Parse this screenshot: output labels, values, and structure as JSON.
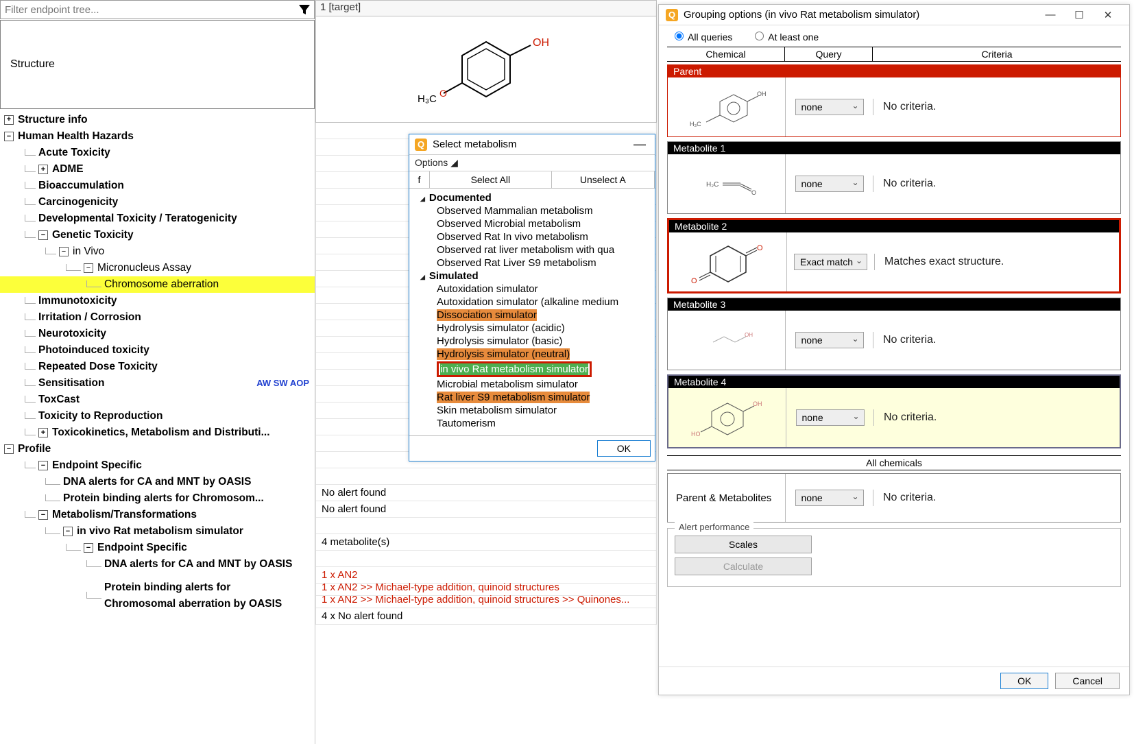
{
  "filter_placeholder": "Filter endpoint tree...",
  "structure_label": "Structure",
  "tree": {
    "structure_info": "Structure info",
    "hhh": "Human Health Hazards",
    "acute": "Acute Toxicity",
    "adme": "ADME",
    "bioacc": "Bioaccumulation",
    "carcin": "Carcinogenicity",
    "devtox": "Developmental Toxicity / Teratogenicity",
    "gentox": "Genetic Toxicity",
    "invivo": "in Vivo",
    "micronucleus": "Micronucleus Assay",
    "chrom_ab": "Chromosome aberration",
    "immuno": "Immunotoxicity",
    "irrit": "Irritation / Corrosion",
    "neuro": "Neurotoxicity",
    "photo": "Photoinduced toxicity",
    "repdose": "Repeated Dose Toxicity",
    "sensit": "Sensitisation",
    "sensit_tags": "AW SW AOP",
    "toxcast": "ToxCast",
    "toxrep": "Toxicity to Reproduction",
    "toxkin": "Toxicokinetics, Metabolism and Distributi...",
    "profile": "Profile",
    "ep_spec": "Endpoint Specific",
    "dna_alerts": "DNA alerts for CA and MNT by OASIS",
    "prot_bind": "Protein binding alerts for Chromosom...",
    "metab": "Metabolism/Transformations",
    "rat_sim": "in vivo Rat metabolism simulator",
    "ep_spec2": "Endpoint Specific",
    "dna_alerts2": "DNA alerts for CA and MNT by OASIS",
    "prot_bind2": "Protein binding alerts for Chromosomal aberration by OASIS"
  },
  "mid": {
    "header": "1 [target]",
    "no_alert": "No alert found",
    "metab_count": "4 metabolite(s)",
    "an2_1": "1 x AN2",
    "an2_2": "1 x AN2 >>  Michael-type addition, quinoid structures",
    "an2_3": "1 x AN2 >>  Michael-type addition, quinoid structures >> Quinones...",
    "no_alert_4": "4 x No alert found",
    "labels": {
      "oh": "OH",
      "h3c": "H₃C",
      "o": "O"
    }
  },
  "sel_dlg": {
    "title": "Select metabolism",
    "options": "Options ◢",
    "f": "f",
    "select_all": "Select All",
    "unselect_all": "Unselect A",
    "documented": "Documented",
    "doc_items": [
      "Observed Mammalian metabolism",
      "Observed Microbial metabolism",
      "Observed Rat In vivo metabolism",
      "Observed rat liver metabolism with qua",
      "Observed Rat Liver S9  metabolism"
    ],
    "simulated": "Simulated",
    "sim_items": [
      {
        "t": "Autoxidation simulator",
        "c": ""
      },
      {
        "t": "Autoxidation simulator (alkaline medium",
        "c": ""
      },
      {
        "t": "Dissociation simulator",
        "c": "or"
      },
      {
        "t": "Hydrolysis simulator (acidic)",
        "c": ""
      },
      {
        "t": "Hydrolysis simulator (basic)",
        "c": ""
      },
      {
        "t": "Hydrolysis simulator (neutral)",
        "c": "or"
      },
      {
        "t": "in vivo Rat metabolism simulator",
        "c": "gr"
      },
      {
        "t": "Microbial metabolism simulator",
        "c": ""
      },
      {
        "t": "Rat liver S9 metabolism simulator",
        "c": "or"
      },
      {
        "t": "Skin metabolism simulator",
        "c": ""
      },
      {
        "t": "Tautomerism",
        "c": ""
      }
    ],
    "ok": "OK"
  },
  "grp_dlg": {
    "title": "Grouping options (in vivo Rat metabolism simulator)",
    "all_q": "All queries",
    "at_least": "At least one",
    "h_chem": "Chemical",
    "h_query": "Query",
    "h_crit": "Criteria",
    "parent": "Parent",
    "m1": "Metabolite 1",
    "m2": "Metabolite 2",
    "m3": "Metabolite 3",
    "m4": "Metabolite 4",
    "none": "none",
    "exact": "Exact match",
    "no_crit": "No criteria.",
    "matches_exact": "Matches exact structure.",
    "all_chem": "All chemicals",
    "pm": "Parent & Metabolites",
    "alert_perf": "Alert performance",
    "scales": "Scales",
    "calc": "Calculate",
    "ok": "OK",
    "cancel": "Cancel"
  }
}
